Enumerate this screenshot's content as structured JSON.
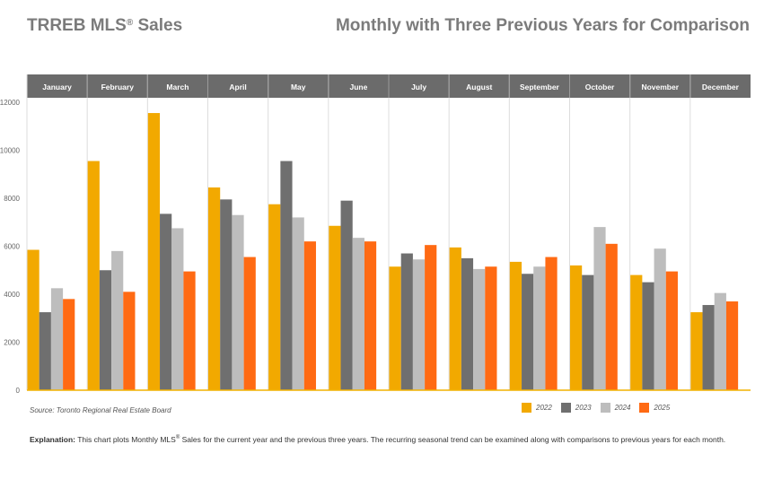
{
  "header": {
    "title_main": "TRREB MLS",
    "title_reg": "®",
    "title_rest": " Sales",
    "subtitle": "Monthly with Three Previous Years for Comparison"
  },
  "source": "Source: Toronto Regional Real Estate Board",
  "explanation": {
    "label": "Explanation:",
    "text_a": " This chart plots Monthly MLS",
    "reg": "®",
    "text_b": " Sales for the current year and the previous three years. The recurring seasonal trend can be examined along with comparisons to previous years for each month."
  },
  "colors": {
    "header_bg": "#6b6b6b",
    "grid": "#dcdcdc",
    "baseline": "#f2b200"
  },
  "chart_data": {
    "type": "bar",
    "categories": [
      "January",
      "February",
      "March",
      "April",
      "May",
      "June",
      "July",
      "August",
      "September",
      "October",
      "November",
      "December"
    ],
    "series": [
      {
        "name": "2022",
        "color": "#f2a900",
        "values": [
          5850,
          9550,
          11550,
          8450,
          7750,
          6850,
          5150,
          5950,
          5350,
          5200,
          4800,
          3250
        ]
      },
      {
        "name": "2023",
        "color": "#6f6f6f",
        "values": [
          3250,
          5000,
          7350,
          7950,
          9550,
          7900,
          5700,
          5500,
          4850,
          4800,
          4500,
          3550
        ]
      },
      {
        "name": "2024",
        "color": "#bdbdbd",
        "values": [
          4250,
          5800,
          6750,
          7300,
          7200,
          6350,
          5450,
          5050,
          5150,
          6800,
          5900,
          4050
        ]
      },
      {
        "name": "2025",
        "color": "#ff6a13",
        "values": [
          3800,
          4100,
          4950,
          5550,
          6200,
          6200,
          6050,
          5150,
          5550,
          6100,
          4950,
          3700
        ]
      }
    ],
    "ylim": [
      0,
      12000
    ],
    "yticks": [
      0,
      2000,
      4000,
      6000,
      8000,
      10000,
      12000
    ],
    "grid": true,
    "legend_position": "bottom-right",
    "title": "TRREB MLS® Sales",
    "subtitle": "Monthly with Three Previous Years for Comparison"
  }
}
